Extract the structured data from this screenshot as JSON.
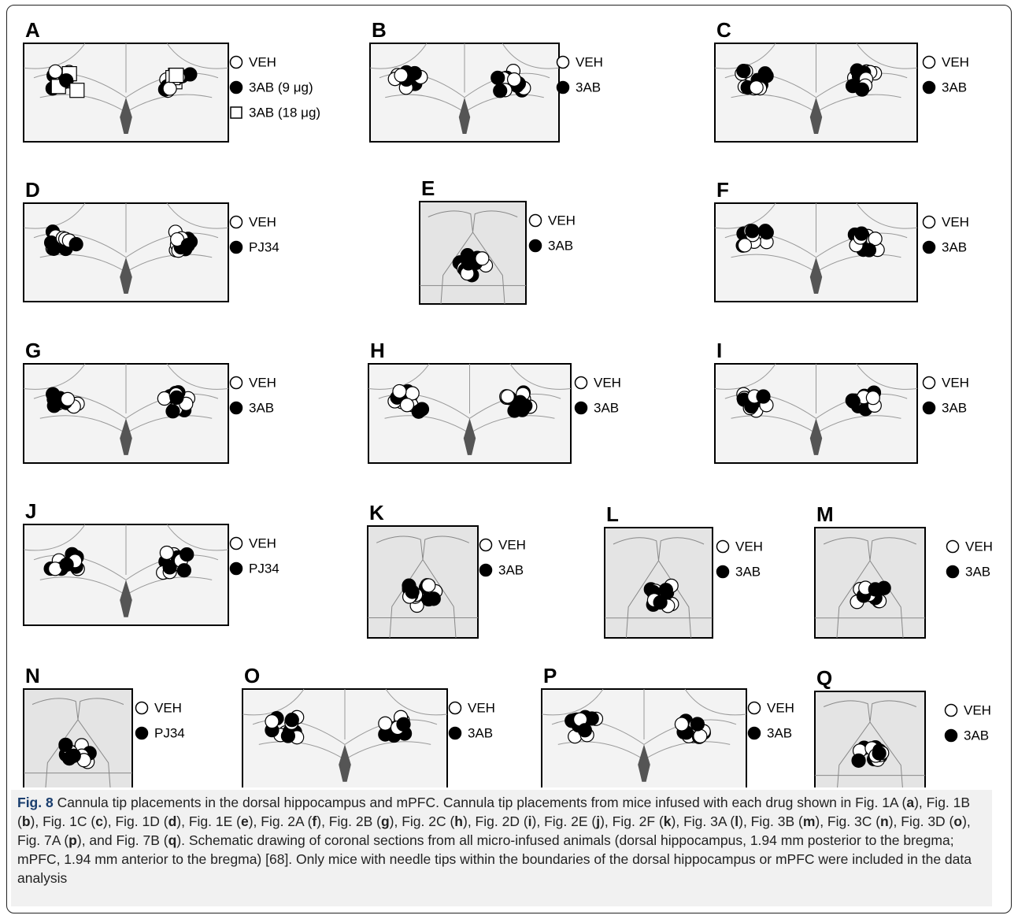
{
  "panels": [
    {
      "letter": "A",
      "legend": [
        {
          "label": "VEH",
          "marker": "open-circle"
        },
        {
          "label": "3AB (9 μg)",
          "marker": "filled-circle"
        },
        {
          "label": "3AB (18 μg)",
          "marker": "open-square"
        }
      ]
    },
    {
      "letter": "B",
      "legend": [
        {
          "label": "VEH",
          "marker": "open-circle"
        },
        {
          "label": "3AB",
          "marker": "filled-circle"
        }
      ]
    },
    {
      "letter": "C",
      "legend": [
        {
          "label": "VEH",
          "marker": "open-circle"
        },
        {
          "label": "3AB",
          "marker": "filled-circle"
        }
      ]
    },
    {
      "letter": "D",
      "legend": [
        {
          "label": "VEH",
          "marker": "open-circle"
        },
        {
          "label": "PJ34",
          "marker": "filled-circle"
        }
      ]
    },
    {
      "letter": "E",
      "legend": [
        {
          "label": "VEH",
          "marker": "open-circle"
        },
        {
          "label": "3AB",
          "marker": "filled-circle"
        }
      ]
    },
    {
      "letter": "F",
      "legend": [
        {
          "label": "VEH",
          "marker": "open-circle"
        },
        {
          "label": "3AB",
          "marker": "filled-circle"
        }
      ]
    },
    {
      "letter": "G",
      "legend": [
        {
          "label": "VEH",
          "marker": "open-circle"
        },
        {
          "label": "3AB",
          "marker": "filled-circle"
        }
      ]
    },
    {
      "letter": "H",
      "legend": [
        {
          "label": "VEH",
          "marker": "open-circle"
        },
        {
          "label": "3AB",
          "marker": "filled-circle"
        }
      ]
    },
    {
      "letter": "I",
      "legend": [
        {
          "label": "VEH",
          "marker": "open-circle"
        },
        {
          "label": "3AB",
          "marker": "filled-circle"
        }
      ]
    },
    {
      "letter": "J",
      "legend": [
        {
          "label": "VEH",
          "marker": "open-circle"
        },
        {
          "label": "PJ34",
          "marker": "filled-circle"
        }
      ]
    },
    {
      "letter": "K",
      "legend": [
        {
          "label": "VEH",
          "marker": "open-circle"
        },
        {
          "label": "3AB",
          "marker": "filled-circle"
        }
      ]
    },
    {
      "letter": "L",
      "legend": [
        {
          "label": "VEH",
          "marker": "open-circle"
        },
        {
          "label": "3AB",
          "marker": "filled-circle"
        }
      ]
    },
    {
      "letter": "M",
      "legend": [
        {
          "label": "VEH",
          "marker": "open-circle"
        },
        {
          "label": "3AB",
          "marker": "filled-circle"
        }
      ]
    },
    {
      "letter": "N",
      "legend": [
        {
          "label": "VEH",
          "marker": "open-circle"
        },
        {
          "label": "PJ34",
          "marker": "filled-circle"
        }
      ]
    },
    {
      "letter": "O",
      "legend": [
        {
          "label": "VEH",
          "marker": "open-circle"
        },
        {
          "label": "3AB",
          "marker": "filled-circle"
        }
      ]
    },
    {
      "letter": "P",
      "legend": [
        {
          "label": "VEH",
          "marker": "open-circle"
        },
        {
          "label": "3AB",
          "marker": "filled-circle"
        }
      ]
    },
    {
      "letter": "Q",
      "legend": [
        {
          "label": "VEH",
          "marker": "open-circle"
        },
        {
          "label": "3AB",
          "marker": "filled-circle"
        }
      ]
    }
  ],
  "caption": {
    "label": "Fig. 8",
    "runs": [
      " Cannula tip placements in the dorsal hippocampus and mPFC. Cannula tip placements from mice infused with each drug shown in Fig. 1A (",
      "a",
      "), Fig. 1B (",
      "b",
      "), Fig. 1C (",
      "c",
      "), Fig. 1D (",
      "d",
      "), Fig. 1E (",
      "e",
      "), Fig. 2A (",
      "f",
      "), Fig. 2B (",
      "g",
      "), Fig. 2C (",
      "h",
      "), Fig. 2D (",
      "i",
      "), Fig. 2E (",
      "j",
      "), Fig. 2F (",
      "k",
      "), Fig. 3A (",
      "l",
      "), Fig. 3B (",
      "m",
      "), Fig. 3C (",
      "n",
      "), Fig. 3D (",
      "o",
      "), Fig. 7A (",
      "p",
      "), and Fig. 7B (",
      "q",
      "). Schematic drawing of coronal sections from all micro-infused animals (dorsal hippocampus, 1.94 mm posterior to the bregma; mPFC, 1.94 mm anterior to the bregma) [68]. Only mice with needle tips within the boundaries of the dorsal hippocampus or mPFC were included in the data analysis"
    ]
  }
}
